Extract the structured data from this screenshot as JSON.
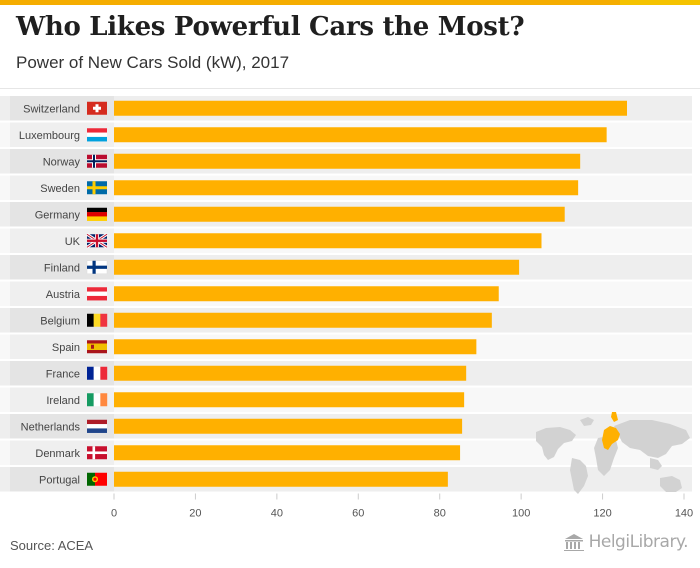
{
  "title": "Who Likes Powerful Cars the Most?",
  "subtitle": "Power of New Cars Sold (kW), 2017",
  "source": "Source: ACEA",
  "logo_text": "HelgiLibrary.",
  "bar_color": "#ffb000",
  "chart_data": {
    "type": "bar",
    "orientation": "horizontal",
    "title": "Who Likes Powerful Cars the Most?",
    "subtitle": "Power of New Cars Sold (kW), 2017",
    "xlim": [
      0,
      140
    ],
    "x_ticks": [
      0,
      20,
      40,
      60,
      80,
      100,
      120,
      140
    ],
    "categories": [
      "Switzerland",
      "Luxembourg",
      "Norway",
      "Sweden",
      "Germany",
      "UK",
      "Finland",
      "Austria",
      "Belgium",
      "Spain",
      "France",
      "Ireland",
      "Netherlands",
      "Denmark",
      "Portugal"
    ],
    "values": [
      126,
      121,
      114.5,
      114,
      110.7,
      105,
      99.5,
      94.5,
      92.8,
      89,
      86.5,
      86,
      85.5,
      85,
      82
    ],
    "flags": [
      "switzerland-flag",
      "luxembourg-flag",
      "norway-flag",
      "sweden-flag",
      "germany-flag",
      "uk-flag",
      "finland-flag",
      "austria-flag",
      "belgium-flag",
      "spain-flag",
      "france-flag",
      "ireland-flag",
      "netherlands-flag",
      "denmark-flag",
      "portugal-flag"
    ]
  }
}
